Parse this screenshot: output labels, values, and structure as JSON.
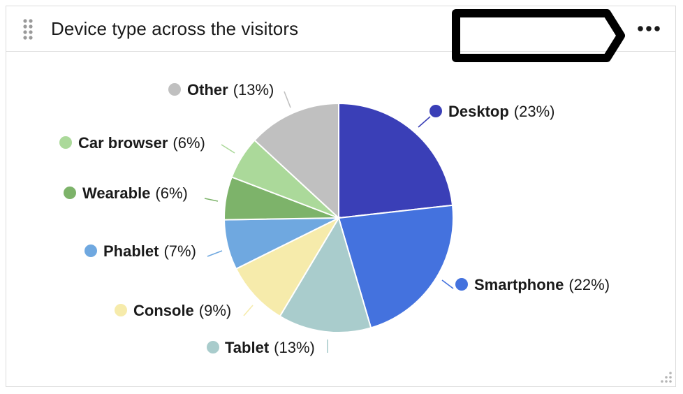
{
  "header": {
    "title": "Device type across the visitors"
  },
  "icons": {
    "drag": "drag-handle-icon",
    "more": "more-horizontal-icon",
    "resize": "resize-corner-icon"
  },
  "chart_data": {
    "type": "pie",
    "title": "Device type across the visitors",
    "slices": [
      {
        "name": "Desktop",
        "value": 23,
        "pct_label": "(23%)",
        "color": "#3a3fb7"
      },
      {
        "name": "Smartphone",
        "value": 22,
        "pct_label": "(22%)",
        "color": "#4472de"
      },
      {
        "name": "Tablet",
        "value": 13,
        "pct_label": "(13%)",
        "color": "#a9cccc"
      },
      {
        "name": "Console",
        "value": 9,
        "pct_label": "(9%)",
        "color": "#f6ebab"
      },
      {
        "name": "Phablet",
        "value": 7,
        "pct_label": "(7%)",
        "color": "#6fa8e0"
      },
      {
        "name": "Wearable",
        "value": 6,
        "pct_label": "(6%)",
        "color": "#7db36a"
      },
      {
        "name": "Car browser",
        "value": 6,
        "pct_label": "(6%)",
        "color": "#abd99a"
      },
      {
        "name": "Other",
        "value": 13,
        "pct_label": "(13%)",
        "color": "#c0c0c0"
      }
    ]
  }
}
